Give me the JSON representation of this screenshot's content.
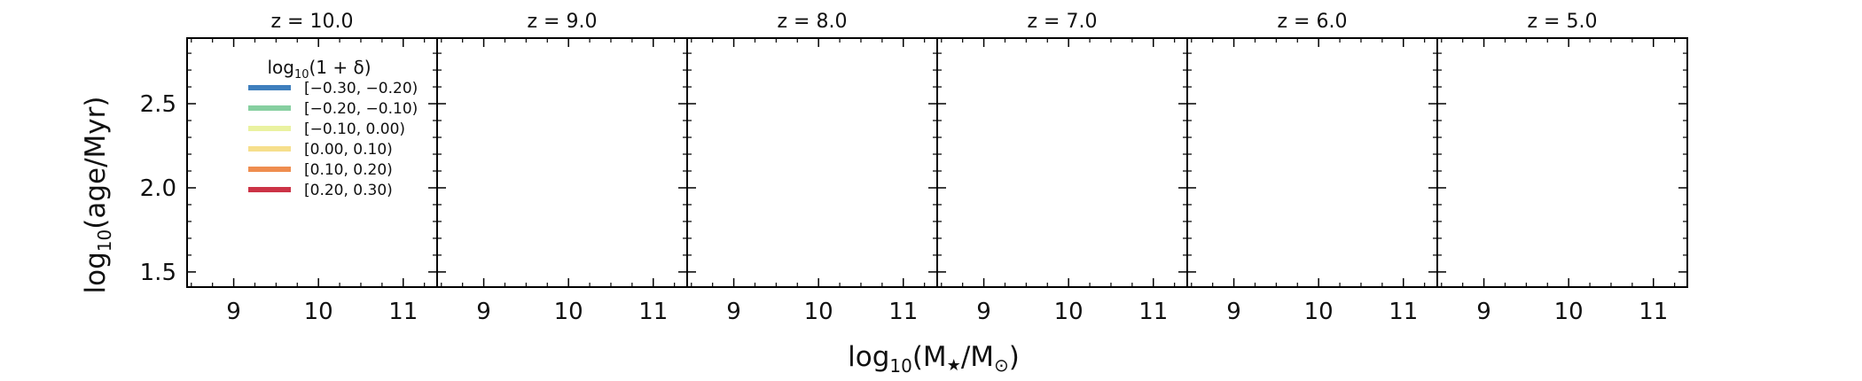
{
  "figure": {
    "ylabel": {
      "base": "log",
      "sub": "10",
      "rest": "(age/Myr)"
    },
    "xlabel": {
      "base": "log",
      "sub": "10",
      "pre": "(M",
      "star": "★",
      "mid": "/M",
      "sun": "⊙",
      "post": ")"
    }
  },
  "legend": {
    "title": {
      "base": "log",
      "sub": "10",
      "rest": "(1 + δ)"
    },
    "entries": [
      {
        "label": "[−0.30, −0.20)",
        "color": "#3f7fbd"
      },
      {
        "label": "[−0.20, −0.10)",
        "color": "#86cfa0"
      },
      {
        "label": "[−0.10, 0.00)",
        "color": "#eaf2a0"
      },
      {
        "label": "[0.00, 0.10)",
        "color": "#f6df8c"
      },
      {
        "label": "[0.10, 0.20)",
        "color": "#ef8d4f"
      },
      {
        "label": "[0.20, 0.30)",
        "color": "#cc3346"
      }
    ]
  },
  "chart_data": [
    {
      "type": "line",
      "title": "z = 10.0",
      "xlim": [
        8.45,
        11.4
      ],
      "ylim": [
        1.41,
        2.89
      ],
      "xticks": [
        9,
        10,
        11
      ],
      "yticks": [
        1.5,
        2.0,
        2.5
      ],
      "series": []
    },
    {
      "type": "line",
      "title": "z = 9.0",
      "xlim": [
        8.45,
        11.4
      ],
      "ylim": [
        1.41,
        2.89
      ],
      "xticks": [
        9,
        10,
        11
      ],
      "yticks": [
        1.5,
        2.0,
        2.5
      ],
      "series": []
    },
    {
      "type": "line",
      "title": "z = 8.0",
      "xlim": [
        8.45,
        11.4
      ],
      "ylim": [
        1.41,
        2.89
      ],
      "xticks": [
        9,
        10,
        11
      ],
      "yticks": [
        1.5,
        2.0,
        2.5
      ],
      "series": []
    },
    {
      "type": "line",
      "title": "z = 7.0",
      "xlim": [
        8.45,
        11.4
      ],
      "ylim": [
        1.41,
        2.89
      ],
      "xticks": [
        9,
        10,
        11
      ],
      "yticks": [
        1.5,
        2.0,
        2.5
      ],
      "series": []
    },
    {
      "type": "line",
      "title": "z = 6.0",
      "xlim": [
        8.45,
        11.4
      ],
      "ylim": [
        1.41,
        2.89
      ],
      "xticks": [
        9,
        10,
        11
      ],
      "yticks": [
        1.5,
        2.0,
        2.5
      ],
      "series": []
    },
    {
      "type": "line",
      "title": "z = 5.0",
      "xlim": [
        8.45,
        11.4
      ],
      "ylim": [
        1.41,
        2.89
      ],
      "xticks": [
        9,
        10,
        11
      ],
      "yticks": [
        1.5,
        2.0,
        2.5
      ],
      "series": []
    }
  ]
}
